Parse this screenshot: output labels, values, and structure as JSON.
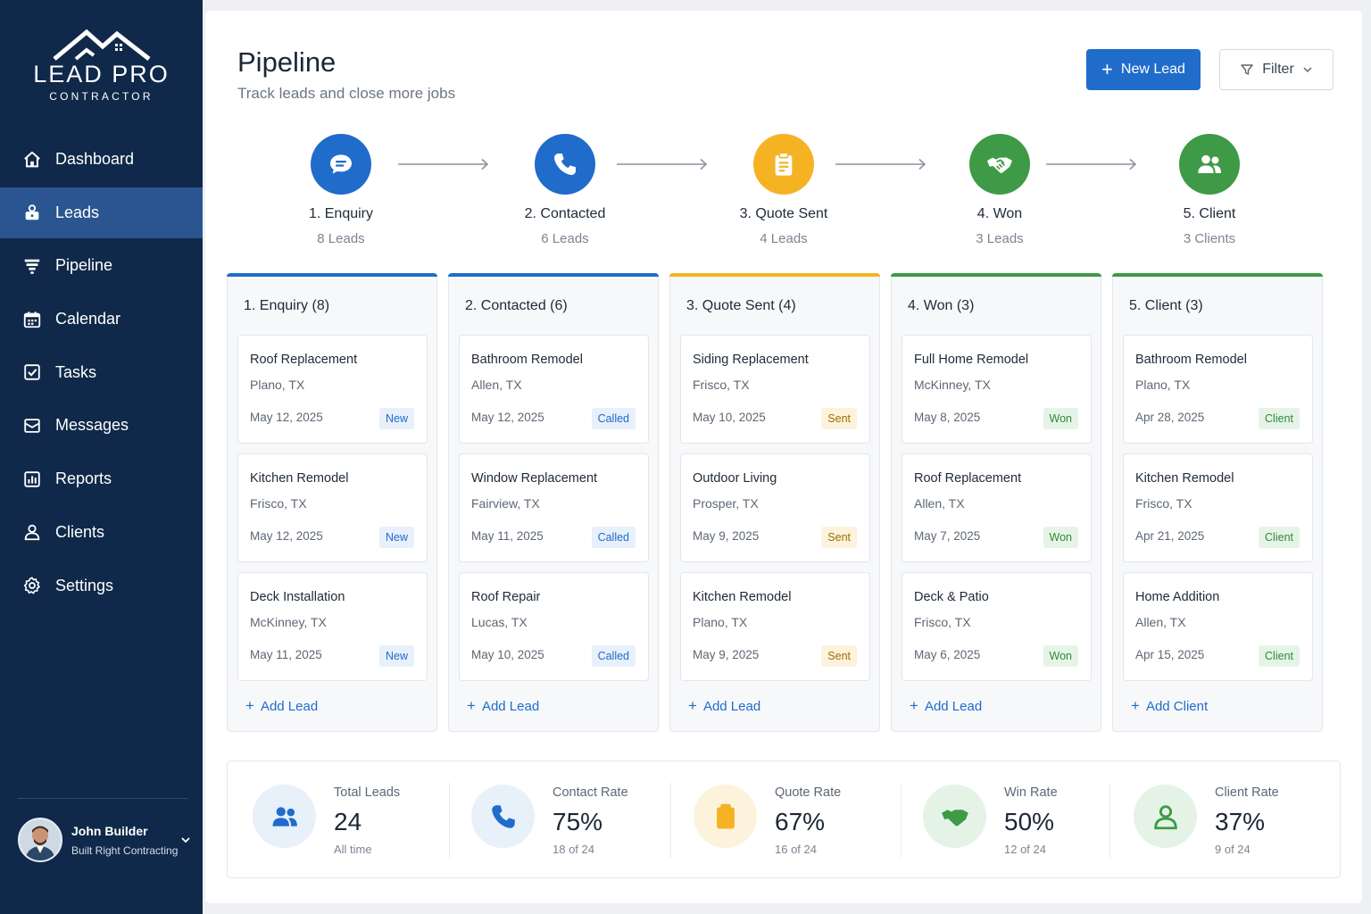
{
  "brand": {
    "name": "LEAD PRO",
    "tagline": "CONTRACTOR"
  },
  "nav": [
    {
      "label": "Dashboard",
      "icon": "home-icon",
      "active": false
    },
    {
      "label": "Leads",
      "icon": "lock-user-icon",
      "active": true
    },
    {
      "label": "Pipeline",
      "icon": "funnel-icon",
      "active": false
    },
    {
      "label": "Calendar",
      "icon": "calendar-icon",
      "active": false
    },
    {
      "label": "Tasks",
      "icon": "checkbox-icon",
      "active": false
    },
    {
      "label": "Messages",
      "icon": "mail-icon",
      "active": false
    },
    {
      "label": "Reports",
      "icon": "report-icon",
      "active": false
    },
    {
      "label": "Clients",
      "icon": "user-icon",
      "active": false
    },
    {
      "label": "Settings",
      "icon": "gear-icon",
      "active": false
    }
  ],
  "user": {
    "name": "John Builder",
    "company": "Built Right Contracting"
  },
  "header": {
    "title": "Pipeline",
    "subtitle": "Track leads and close more jobs",
    "new_lead_label": "New Lead",
    "filter_label": "Filter"
  },
  "stages": [
    {
      "name": "1. Enquiry",
      "count": "8 Leads",
      "color": "#1f6ccb",
      "icon": "chat-icon"
    },
    {
      "name": "2. Contacted",
      "count": "6 Leads",
      "color": "#1f6ccb",
      "icon": "phone-icon"
    },
    {
      "name": "3. Quote Sent",
      "count": "4 Leads",
      "color": "#f5b324",
      "icon": "clipboard-icon"
    },
    {
      "name": "4. Won",
      "count": "3 Leads",
      "color": "#3e9a46",
      "icon": "handshake-icon"
    },
    {
      "name": "5. Client",
      "count": "3 Clients",
      "color": "#3e9a46",
      "icon": "users-icon"
    }
  ],
  "columns": [
    {
      "title": "1. Enquiry (8)",
      "color": "#1f6ccb",
      "add_label": "Add Lead",
      "cards": [
        {
          "title": "Roof Replacement",
          "location": "Plano, TX",
          "date": "May 12, 2025",
          "badge": "New"
        },
        {
          "title": "Kitchen Remodel",
          "location": "Frisco, TX",
          "date": "May 12, 2025",
          "badge": "New"
        },
        {
          "title": "Deck Installation",
          "location": "McKinney, TX",
          "date": "May 11, 2025",
          "badge": "New"
        }
      ]
    },
    {
      "title": "2. Contacted (6)",
      "color": "#1f6ccb",
      "add_label": "Add Lead",
      "cards": [
        {
          "title": "Bathroom Remodel",
          "location": "Allen, TX",
          "date": "May 12, 2025",
          "badge": "Called"
        },
        {
          "title": "Window Replacement",
          "location": "Fairview, TX",
          "date": "May 11, 2025",
          "badge": "Called"
        },
        {
          "title": "Roof Repair",
          "location": "Lucas, TX",
          "date": "May 10, 2025",
          "badge": "Called"
        }
      ]
    },
    {
      "title": "3. Quote Sent (4)",
      "color": "#f5b324",
      "add_label": "Add Lead",
      "cards": [
        {
          "title": "Siding Replacement",
          "location": "Frisco, TX",
          "date": "May 10, 2025",
          "badge": "Sent"
        },
        {
          "title": "Outdoor Living",
          "location": "Prosper, TX",
          "date": "May 9, 2025",
          "badge": "Sent"
        },
        {
          "title": "Kitchen Remodel",
          "location": "Plano, TX",
          "date": "May 9, 2025",
          "badge": "Sent"
        }
      ]
    },
    {
      "title": "4. Won (3)",
      "color": "#3e9a46",
      "add_label": "Add Lead",
      "cards": [
        {
          "title": "Full Home Remodel",
          "location": "McKinney, TX",
          "date": "May 8, 2025",
          "badge": "Won"
        },
        {
          "title": "Roof Replacement",
          "location": "Allen, TX",
          "date": "May 7, 2025",
          "badge": "Won"
        },
        {
          "title": "Deck & Patio",
          "location": "Frisco, TX",
          "date": "May 6, 2025",
          "badge": "Won"
        }
      ]
    },
    {
      "title": "5. Client (3)",
      "color": "#3e9a46",
      "add_label": "Add Client",
      "cards": [
        {
          "title": "Bathroom Remodel",
          "location": "Plano, TX",
          "date": "Apr 28, 2025",
          "badge": "Client"
        },
        {
          "title": "Kitchen Remodel",
          "location": "Frisco, TX",
          "date": "Apr 21, 2025",
          "badge": "Client"
        },
        {
          "title": "Home Addition",
          "location": "Allen, TX",
          "date": "Apr 15, 2025",
          "badge": "Client"
        }
      ]
    }
  ],
  "stats": [
    {
      "label": "Total Leads",
      "value": "24",
      "sub": "All time",
      "icon": "users-icon",
      "color": "#1f6ccb",
      "bg": "#e8f0fa"
    },
    {
      "label": "Contact Rate",
      "value": "75%",
      "sub": "18 of 24",
      "icon": "phone-icon",
      "color": "#1f6ccb",
      "bg": "#e8f0fa"
    },
    {
      "label": "Quote Rate",
      "value": "67%",
      "sub": "16 of 24",
      "icon": "clipboard-icon",
      "color": "#f5b324",
      "bg": "#fdf3dc"
    },
    {
      "label": "Win Rate",
      "value": "50%",
      "sub": "12 of 24",
      "icon": "handshake-icon",
      "color": "#3e9a46",
      "bg": "#e5f3e6"
    },
    {
      "label": "Client Rate",
      "value": "37%",
      "sub": "9 of 24",
      "icon": "user-icon",
      "color": "#3e9a46",
      "bg": "#e5f3e6"
    }
  ],
  "badge_colors": {
    "New": {
      "bg": "#e7f0fb",
      "fg": "#1f6ccb"
    },
    "Called": {
      "bg": "#e7f0fb",
      "fg": "#1f6ccb"
    },
    "Sent": {
      "bg": "#fdf3dc",
      "fg": "#a06d00"
    },
    "Won": {
      "bg": "#e6f4e7",
      "fg": "#2f8a38"
    },
    "Client": {
      "bg": "#e6f4e7",
      "fg": "#2f8a38"
    }
  }
}
